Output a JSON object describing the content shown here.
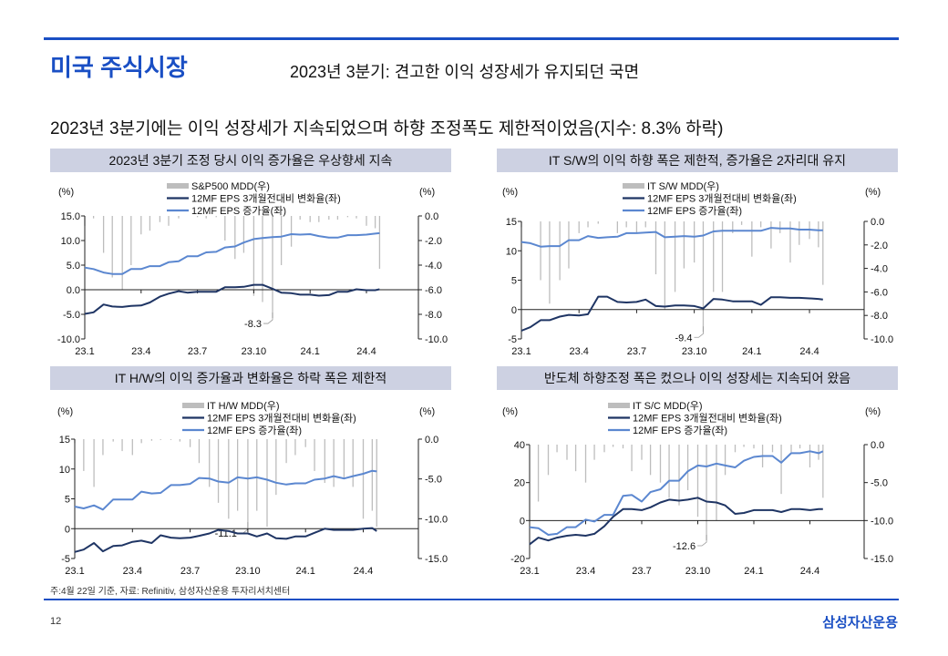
{
  "header": {
    "title": "미국 주식시장",
    "subtitle": "2023년 3분기: 견고한 이익 성장세가 유지되던 국면"
  },
  "heading": "2023년 3분기에는 이익 성장세가 지속되었으며 하향 조정폭도 제한적이었음(지수: 8.3% 하락)",
  "panels": [
    {
      "title": "2023년 3분기 조정 당시 이익 증가율은 우상향세 지속"
    },
    {
      "title": "IT S/W의 이익 하향 폭은 제한적, 증가율은 2자리대 유지"
    },
    {
      "title": "IT H/W의 이익 증가율과 변화율은 하락 폭은 제한적"
    },
    {
      "title": "반도체 하향조정 폭은 컸으나 이익 성장세는 지속되어 왔음"
    }
  ],
  "footnote": "주:4월 22일 기준, 자료: Refinitiv, 삼성자산운용 투자리서치센터",
  "page_number": "12",
  "logo_text": "삼성자산운용",
  "colors": {
    "accent": "#1a4fc4",
    "panel_header": "#cdd1e2",
    "mdd_bar": "#bdbdbd",
    "eps_change": "#1f3564",
    "eps_growth": "#5b87d0"
  },
  "chart_data": [
    {
      "type": "bar+line",
      "left_unit": "(%)",
      "right_unit": "(%)",
      "left_ylim": [
        -10,
        15
      ],
      "right_ylim": [
        -10,
        0
      ],
      "left_ticks": [
        15,
        10,
        5,
        0,
        -5,
        -10
      ],
      "left_tick_labels": [
        "15.0",
        "10.0",
        "5.0",
        "0.0",
        "-5.0",
        "-10.0"
      ],
      "right_ticks": [
        0,
        -2,
        -4,
        -6,
        -8,
        -10
      ],
      "right_tick_labels": [
        "0.0",
        "-2.0",
        "-4.0",
        "-6.0",
        "-8.0",
        "-10.0"
      ],
      "x_tick_labels": [
        "23.1",
        "23.4",
        "23.7",
        "23.10",
        "24.1",
        "24.4"
      ],
      "x": [
        "2023-01-01",
        "2023-01-15",
        "2023-02-01",
        "2023-02-15",
        "2023-03-01",
        "2023-03-15",
        "2023-04-01",
        "2023-04-15",
        "2023-05-01",
        "2023-05-15",
        "2023-06-01",
        "2023-06-15",
        "2023-07-01",
        "2023-07-15",
        "2023-08-01",
        "2023-08-15",
        "2023-09-01",
        "2023-09-15",
        "2023-10-01",
        "2023-10-15",
        "2023-11-01",
        "2023-11-15",
        "2023-12-01",
        "2023-12-15",
        "2024-01-01",
        "2024-01-15",
        "2024-02-01",
        "2024-02-15",
        "2024-03-01",
        "2024-03-15",
        "2024-04-01",
        "2024-04-15",
        "2024-04-22"
      ],
      "series": [
        {
          "name": "S&P500 MDD(우)",
          "kind": "bar",
          "axis": "right",
          "values": [
            -0.8,
            -0.2,
            -3,
            -5,
            -6,
            -4,
            -1.5,
            -1.2,
            -0.5,
            -0.8,
            -0.2,
            0,
            -0.1,
            -0.2,
            -0.1,
            -2,
            -3.5,
            -3,
            -6.5,
            -7,
            -8.3,
            -4,
            -2.5,
            -0.3,
            -0.5,
            -0.5,
            -0.3,
            -0.3,
            -0.1,
            -0.2,
            -0.8,
            -1,
            -4.3
          ]
        },
        {
          "name": "12MF EPS 3개월전대비 변화율(좌)",
          "kind": "line",
          "axis": "left",
          "values": [
            -4.9,
            -4.6,
            -3.0,
            -3.4,
            -3.5,
            -3.3,
            -3.2,
            -2.6,
            -1.4,
            -0.8,
            -0.3,
            -0.6,
            -0.4,
            -0.4,
            -0.4,
            0.5,
            0.5,
            0.6,
            1.0,
            1.0,
            0.2,
            -0.6,
            -0.7,
            -1.0,
            -1.0,
            -1.2,
            -1.1,
            -0.4,
            -0.4,
            0.1,
            -0.1,
            -0.1,
            0.1
          ]
        },
        {
          "name": "12MF EPS 증가율(좌)",
          "kind": "line",
          "axis": "left",
          "values": [
            4.5,
            4.2,
            3.5,
            3.2,
            3.2,
            4.2,
            4.2,
            4.8,
            4.8,
            5.6,
            5.8,
            6.8,
            6.8,
            7.6,
            7.7,
            8.6,
            8.8,
            9.6,
            10.3,
            10.5,
            10.7,
            10.8,
            11.3,
            11.2,
            11.3,
            10.9,
            10.6,
            10.6,
            11.1,
            11.1,
            11.2,
            11.4,
            11.5
          ]
        }
      ],
      "annotation": {
        "label": "-8.3",
        "x": "2023-11-01"
      }
    },
    {
      "type": "bar+line",
      "left_unit": "(%)",
      "right_unit": "(%)",
      "left_ylim": [
        -5,
        15
      ],
      "right_ylim": [
        -10,
        0
      ],
      "left_ticks": [
        15,
        10,
        5,
        0,
        -5
      ],
      "left_tick_labels": [
        "15",
        "10",
        "5",
        "0",
        "-5"
      ],
      "right_ticks": [
        0,
        -2,
        -4,
        -6,
        -8,
        -10
      ],
      "right_tick_labels": [
        "0.0",
        "-2.0",
        "-4.0",
        "-6.0",
        "-8.0",
        "-10.0"
      ],
      "x_tick_labels": [
        "23.1",
        "23.4",
        "23.7",
        "23.10",
        "24.1",
        "24.4"
      ],
      "x": [
        "2023-01-01",
        "2023-01-15",
        "2023-02-01",
        "2023-02-15",
        "2023-03-01",
        "2023-03-15",
        "2023-04-01",
        "2023-04-15",
        "2023-05-01",
        "2023-05-15",
        "2023-06-01",
        "2023-06-15",
        "2023-07-01",
        "2023-07-15",
        "2023-08-01",
        "2023-08-15",
        "2023-09-01",
        "2023-09-15",
        "2023-10-01",
        "2023-10-15",
        "2023-11-01",
        "2023-11-15",
        "2023-12-01",
        "2023-12-15",
        "2024-01-01",
        "2024-01-15",
        "2024-02-01",
        "2024-02-15",
        "2024-03-01",
        "2024-03-15",
        "2024-04-01",
        "2024-04-15",
        "2024-04-22"
      ],
      "series": [
        {
          "name": "IT S/W MDD(우)",
          "kind": "bar",
          "axis": "right",
          "values": [
            -0.5,
            0,
            -5,
            -7,
            -5,
            -4,
            -1,
            -0.5,
            -0.2,
            0,
            -1,
            -0.5,
            -1,
            -0.5,
            -4.5,
            -7.5,
            -6,
            -4,
            -3.5,
            -9.4,
            -6,
            -6,
            -1,
            -0.3,
            -3,
            -0.5,
            -2.3,
            -1,
            -3.5,
            -2,
            -1.5,
            -2.2,
            -5.4
          ]
        },
        {
          "name": "12MF EPS 3개월전대비 변화율(좌)",
          "kind": "line",
          "axis": "left",
          "values": [
            -3.6,
            -3.0,
            -1.8,
            -1.8,
            -1.2,
            -0.9,
            -1.0,
            -0.8,
            2.2,
            2.2,
            1.3,
            1.2,
            1.3,
            1.7,
            0.6,
            0.5,
            0.7,
            0.7,
            0.6,
            0.2,
            1.8,
            1.7,
            1.4,
            1.4,
            1.4,
            0.8,
            2.1,
            2.1,
            2.0,
            2.0,
            1.9,
            1.8,
            1.7
          ]
        },
        {
          "name": "12MF EPS 증가율(좌)",
          "kind": "line",
          "axis": "left",
          "values": [
            11.5,
            11.3,
            10.7,
            10.8,
            10.8,
            11.8,
            11.8,
            12.5,
            12.2,
            12.3,
            12.4,
            13,
            13,
            13.1,
            13.2,
            12.3,
            12.4,
            12.5,
            12.4,
            12.6,
            13.3,
            13.4,
            13.4,
            13.4,
            13.4,
            13.4,
            13.9,
            13.8,
            13.8,
            13.6,
            13.6,
            13.5,
            13.5
          ]
        }
      ],
      "annotation": {
        "label": "-9.4",
        "x": "2023-10-15"
      }
    },
    {
      "type": "bar+line",
      "left_unit": "(%)",
      "right_unit": "(%)",
      "left_ylim": [
        -5,
        15
      ],
      "right_ylim": [
        -15,
        0
      ],
      "left_ticks": [
        15,
        10,
        5,
        0,
        -5
      ],
      "left_tick_labels": [
        "15",
        "10",
        "5",
        "0",
        "-5"
      ],
      "right_ticks": [
        0,
        -5,
        -10,
        -15
      ],
      "right_tick_labels": [
        "0.0",
        "-5.0",
        "-10.0",
        "-15.0"
      ],
      "x_tick_labels": [
        "23.1",
        "23.4",
        "23.7",
        "23.10",
        "24.1",
        "24.4"
      ],
      "x": [
        "2023-01-01",
        "2023-01-15",
        "2023-02-01",
        "2023-02-15",
        "2023-03-01",
        "2023-03-15",
        "2023-04-01",
        "2023-04-15",
        "2023-05-01",
        "2023-05-15",
        "2023-06-01",
        "2023-06-15",
        "2023-07-01",
        "2023-07-15",
        "2023-08-01",
        "2023-08-15",
        "2023-09-01",
        "2023-09-15",
        "2023-10-01",
        "2023-10-15",
        "2023-11-01",
        "2023-11-15",
        "2023-12-01",
        "2023-12-15",
        "2024-01-01",
        "2024-01-15",
        "2024-02-01",
        "2024-02-15",
        "2024-03-01",
        "2024-03-15",
        "2024-04-01",
        "2024-04-15",
        "2024-04-22"
      ],
      "series": [
        {
          "name": "IT H/W MDD(우)",
          "kind": "bar",
          "axis": "right",
          "values": [
            -0.5,
            -4,
            -6,
            -2,
            -0.3,
            -1.5,
            -2,
            -0.5,
            -0.2,
            -0.1,
            -0.1,
            -0.3,
            -1,
            -3,
            -6,
            -8,
            -10,
            -9,
            -11.1,
            -9,
            -11,
            -7,
            -3,
            -2,
            -1,
            -4,
            -5.5,
            -6,
            -5,
            -6,
            -10,
            -9,
            -11
          ]
        },
        {
          "name": "12MF EPS 3개월전대비 변화율(좌)",
          "kind": "line",
          "axis": "left",
          "values": [
            -3.9,
            -3.5,
            -2.4,
            -3.8,
            -2.9,
            -2.8,
            -2.2,
            -2.0,
            -2.4,
            -1.1,
            -1.5,
            -1.6,
            -1.5,
            -1.2,
            -0.8,
            -0.2,
            -0.4,
            -0.8,
            -0.8,
            -1.3,
            -0.8,
            -1.6,
            -1.7,
            -1.3,
            -1.3,
            -0.7,
            0.0,
            -0.2,
            -0.2,
            -0.2,
            0.0,
            0.1,
            -0.4
          ]
        },
        {
          "name": "12MF EPS 증가율(좌)",
          "kind": "line",
          "axis": "left",
          "values": [
            3.7,
            3.4,
            3.9,
            3.2,
            4.9,
            4.9,
            4.9,
            6.2,
            5.9,
            6.0,
            7.3,
            7.3,
            7.5,
            8.5,
            8.4,
            7.9,
            7.7,
            8.6,
            8.4,
            8.6,
            8.2,
            7.7,
            7.4,
            7.6,
            7.6,
            8.2,
            8.4,
            8.8,
            8.4,
            8.8,
            9.2,
            9.7,
            9.6
          ]
        }
      ],
      "annotation": {
        "label": "-11.1",
        "x": "2023-10-01"
      }
    },
    {
      "type": "bar+line",
      "left_unit": "(%)",
      "right_unit": "(%)",
      "left_ylim": [
        -20,
        40
      ],
      "right_ylim": [
        -15,
        0
      ],
      "left_ticks": [
        40,
        20,
        0,
        -20
      ],
      "left_tick_labels": [
        "40",
        "20",
        "0",
        "-20"
      ],
      "right_ticks": [
        0,
        -5,
        -10,
        -15
      ],
      "right_tick_labels": [
        "0.0",
        "-5.0",
        "-10.0",
        "-15.0"
      ],
      "x_tick_labels": [
        "23.1",
        "23.4",
        "23.7",
        "23.10",
        "24.1",
        "24.4"
      ],
      "x": [
        "2023-01-01",
        "2023-01-15",
        "2023-02-01",
        "2023-02-15",
        "2023-03-01",
        "2023-03-15",
        "2023-04-01",
        "2023-04-15",
        "2023-05-01",
        "2023-05-15",
        "2023-06-01",
        "2023-06-15",
        "2023-07-01",
        "2023-07-15",
        "2023-08-01",
        "2023-08-15",
        "2023-09-01",
        "2023-09-15",
        "2023-10-01",
        "2023-10-15",
        "2023-11-01",
        "2023-11-15",
        "2023-12-01",
        "2023-12-15",
        "2024-01-01",
        "2024-01-15",
        "2024-02-01",
        "2024-02-15",
        "2024-03-01",
        "2024-03-15",
        "2024-04-01",
        "2024-04-15",
        "2024-04-22"
      ],
      "series": [
        {
          "name": "IT S/C MDD(우)",
          "kind": "bar",
          "axis": "right",
          "values": [
            0,
            -7.5,
            -4,
            -1,
            -2,
            -3.5,
            -5,
            -2,
            -1,
            -0.3,
            -0.5,
            -3.5,
            -2,
            -4,
            -5,
            -7,
            -8,
            -6,
            -9.5,
            -12.6,
            -10,
            -4,
            -1,
            -0.3,
            -0.5,
            -3,
            -1,
            -6.5,
            -1,
            -0.5,
            -3,
            -2,
            -7
          ]
        },
        {
          "name": "12MF EPS 3개월전대비 변화율(좌)",
          "kind": "line",
          "axis": "left",
          "values": [
            -12.5,
            -9,
            -10.5,
            -9,
            -8,
            -7.5,
            -8,
            -7,
            -3,
            2,
            6,
            6,
            5.5,
            7,
            9.5,
            11,
            10.5,
            11,
            12,
            10,
            9.5,
            8,
            3.5,
            4,
            5.5,
            5.5,
            5.5,
            4.5,
            6,
            6,
            5.5,
            6,
            6
          ]
        },
        {
          "name": "12MF EPS 증가율(좌)",
          "kind": "line",
          "axis": "left",
          "values": [
            -3.5,
            -4,
            -7.5,
            -7,
            -3.5,
            -3.5,
            0.5,
            -0.5,
            3,
            3,
            13,
            13.5,
            10,
            15,
            16.5,
            21,
            21,
            26,
            29,
            28.5,
            30,
            29,
            28,
            31.5,
            33.5,
            34,
            34,
            30.5,
            35.5,
            35.5,
            36.5,
            35.5,
            36.5
          ]
        }
      ],
      "annotation": {
        "label": "-12.6",
        "x": "2023-10-15"
      }
    }
  ]
}
